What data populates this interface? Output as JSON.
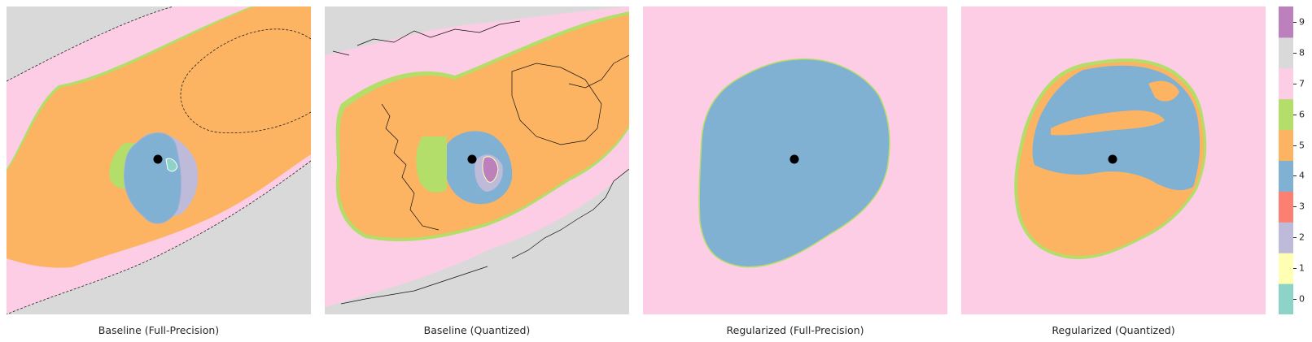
{
  "chart_data": {
    "type": "heatmap",
    "colormap": "Set3-like categorical (10 classes)",
    "class_colors": [
      "#8dd3c7",
      "#ffffb3",
      "#bebada",
      "#fb8072",
      "#80b1d3",
      "#fdb462",
      "#b3de69",
      "#fccde5",
      "#d9d9d9",
      "#bc80bd"
    ],
    "colorbar": {
      "ticks": [
        "0",
        "1",
        "2",
        "3",
        "4",
        "5",
        "6",
        "7",
        "8",
        "9"
      ],
      "placement": "right"
    },
    "grid": false,
    "panels": [
      {
        "title": "Baseline (Full-Precision)",
        "center_class": 4,
        "classes_present": [
          7,
          6,
          5,
          4,
          2,
          0
        ]
      },
      {
        "title": "Baseline (Quantized)",
        "center_class": 4,
        "classes_present": [
          7,
          6,
          5,
          4,
          2,
          9,
          1
        ]
      },
      {
        "title": "Regularized (Full-Precision)",
        "center_class": 4,
        "classes_present": [
          6,
          4
        ]
      },
      {
        "title": "Regularized (Quantized)",
        "center_class": 4,
        "classes_present": [
          6,
          5,
          4
        ]
      }
    ]
  }
}
